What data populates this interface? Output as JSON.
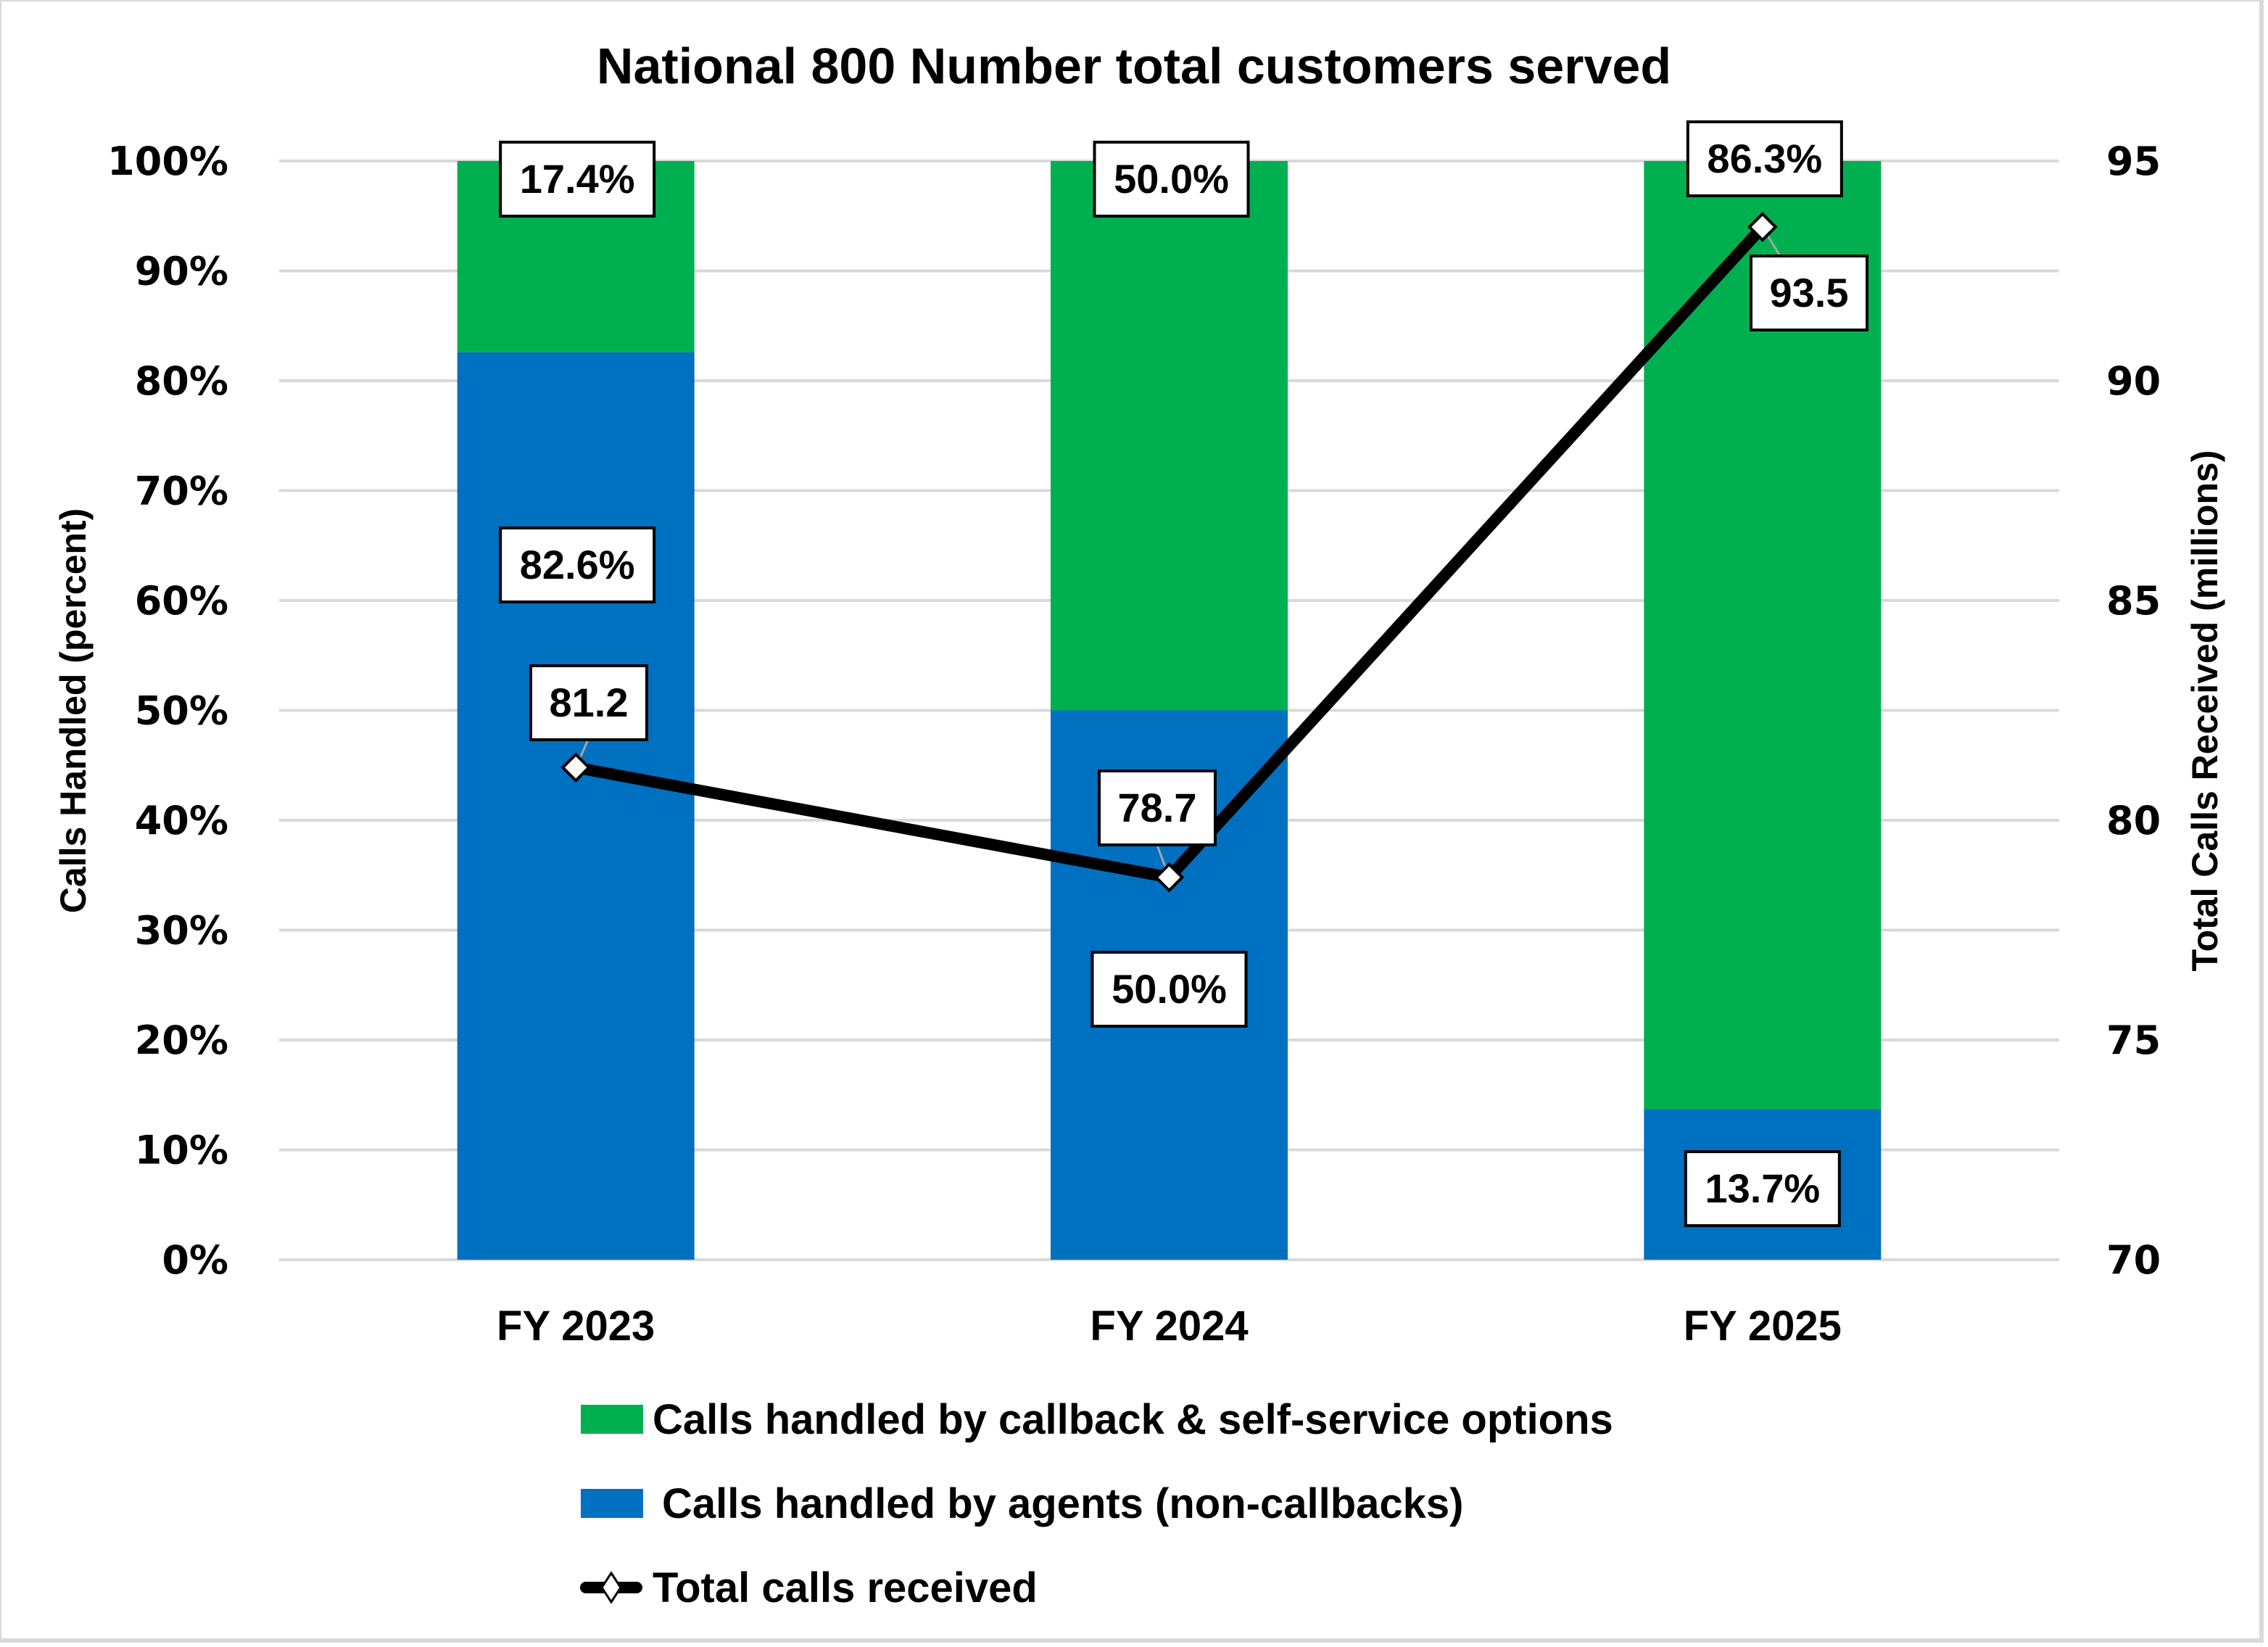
{
  "chart_data": {
    "type": "bar",
    "subtype": "stacked-percent-bar-with-line",
    "title": "National 800 Number total customers served",
    "categories": [
      "FY 2023",
      "FY 2024",
      "FY 2025"
    ],
    "ylabel": "Calls Handled (percent)",
    "y2label": "Total Calls Received (millions)",
    "ylim": [
      0,
      100
    ],
    "y2lim": [
      70,
      95
    ],
    "yticks": [
      "0%",
      "10%",
      "20%",
      "30%",
      "40%",
      "50%",
      "60%",
      "70%",
      "80%",
      "90%",
      "100%"
    ],
    "y2ticks": [
      "70",
      "75",
      "80",
      "85",
      "90",
      "95"
    ],
    "grid": true,
    "legend_position": "bottom",
    "series": [
      {
        "name": "Calls handled by agents (non-callbacks)",
        "kind": "bar",
        "axis": "left",
        "color": "#0070C0",
        "values": [
          82.6,
          50.0,
          13.7
        ],
        "labels": [
          "82.6%",
          "50.0%",
          "13.7%"
        ]
      },
      {
        "name": "Calls handled by callback & self-service options",
        "kind": "bar",
        "axis": "left",
        "color": "#00B050",
        "values": [
          17.4,
          50.0,
          86.3
        ],
        "labels": [
          "17.4%",
          "50.0%",
          "86.3%"
        ]
      },
      {
        "name": "Total calls received",
        "kind": "line",
        "axis": "right",
        "color": "#000000",
        "marker": "diamond",
        "values": [
          81.2,
          78.7,
          93.5
        ],
        "labels": [
          "81.2",
          "78.7",
          "93.5"
        ]
      }
    ],
    "legend": [
      {
        "label": "Calls handled by callback & self-service options",
        "swatch": "square",
        "color": "#00B050"
      },
      {
        "label": "Calls handled by agents (non-callbacks)",
        "swatch": "square",
        "color": "#0070C0"
      },
      {
        "label": "Total calls received",
        "swatch": "line-diamond",
        "color": "#000000"
      }
    ]
  }
}
